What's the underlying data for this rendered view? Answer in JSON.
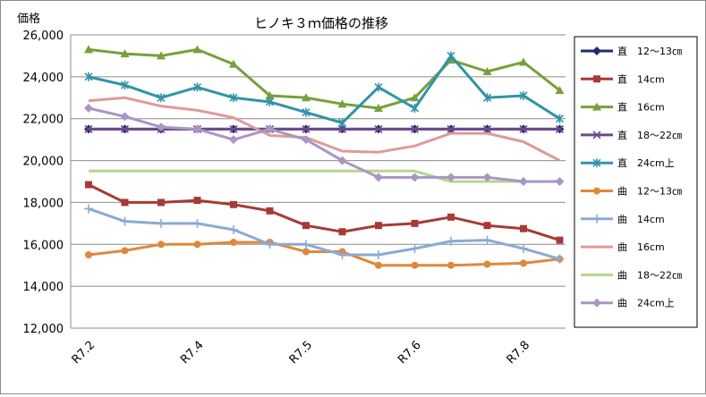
{
  "chart_data": {
    "type": "line",
    "title": "ヒノキ３ｍ価格の推移",
    "ylabel": "価格",
    "xlabel": "",
    "ylim": [
      12000,
      26000
    ],
    "yticks": [
      12000,
      14000,
      16000,
      18000,
      20000,
      22000,
      24000,
      26000
    ],
    "ytick_labels": [
      "12,000",
      "14,000",
      "16,000",
      "18,000",
      "20,000",
      "22,000",
      "24,000",
      "26,000"
    ],
    "x_labels": [
      {
        "label": "R7.2",
        "index": 0
      },
      {
        "label": "R7.4",
        "index": 3
      },
      {
        "label": "R7.5",
        "index": 6
      },
      {
        "label": "R7.6",
        "index": 9
      },
      {
        "label": "R7.8",
        "index": 12
      }
    ],
    "grid": true,
    "legend_position": "right",
    "series": [
      {
        "name": "直　12～13㎝",
        "color": "#1f2d6b",
        "marker": "diamond",
        "values": [
          21500,
          21500,
          21500,
          21500,
          21500,
          21500,
          21500,
          21500,
          21500,
          21500,
          21500,
          21500,
          21500,
          21500
        ]
      },
      {
        "name": "直　14cm",
        "color": "#a83a36",
        "marker": "square",
        "values": [
          18850,
          18000,
          18000,
          18100,
          17900,
          17600,
          16900,
          16600,
          16900,
          17000,
          17300,
          16900,
          16750,
          16200
        ]
      },
      {
        "name": "直　16cm",
        "color": "#77a03a",
        "marker": "triangle",
        "values": [
          25300,
          25100,
          25000,
          25300,
          24600,
          23100,
          23000,
          22700,
          22500,
          23000,
          24800,
          24250,
          24700,
          23350
        ]
      },
      {
        "name": "直　18～22㎝",
        "color": "#6b4a8c",
        "marker": "x",
        "values": [
          21500,
          21500,
          21500,
          21500,
          21500,
          21500,
          21500,
          21500,
          21500,
          21500,
          21500,
          21500,
          21500,
          21500
        ]
      },
      {
        "name": "直　24cm上",
        "color": "#2f94a8",
        "marker": "star",
        "values": [
          24000,
          23600,
          23000,
          23500,
          23000,
          22800,
          22300,
          21800,
          23500,
          22500,
          25000,
          23000,
          23100,
          22000
        ]
      },
      {
        "name": "曲　12～13㎝",
        "color": "#e0883a",
        "marker": "circle",
        "values": [
          15500,
          15700,
          16000,
          16000,
          16100,
          16100,
          15650,
          15650,
          15000,
          15000,
          15000,
          15050,
          15100,
          15300
        ]
      },
      {
        "name": "曲　14cm",
        "color": "#8aaad6",
        "marker": "plus",
        "values": [
          17700,
          17100,
          17000,
          17000,
          16700,
          16000,
          16000,
          15500,
          15500,
          15800,
          16150,
          16200,
          15800,
          15300
        ]
      },
      {
        "name": "曲　16cm",
        "color": "#df9a98",
        "marker": "dash",
        "values": [
          22850,
          23000,
          22600,
          22400,
          22050,
          21200,
          21100,
          20450,
          20400,
          20700,
          21300,
          21300,
          20900,
          20000
        ]
      },
      {
        "name": "曲　18～22㎝",
        "color": "#b5d68c",
        "marker": "dash",
        "values": [
          19500,
          19500,
          19500,
          19500,
          19500,
          19500,
          19500,
          19500,
          19500,
          19500,
          19000,
          19000,
          19000,
          19000
        ]
      },
      {
        "name": "曲　24cm上",
        "color": "#a996c5",
        "marker": "diamond",
        "values": [
          22500,
          22100,
          21600,
          21500,
          21000,
          21500,
          21000,
          20000,
          19200,
          19200,
          19200,
          19200,
          19000,
          19000
        ]
      }
    ]
  }
}
